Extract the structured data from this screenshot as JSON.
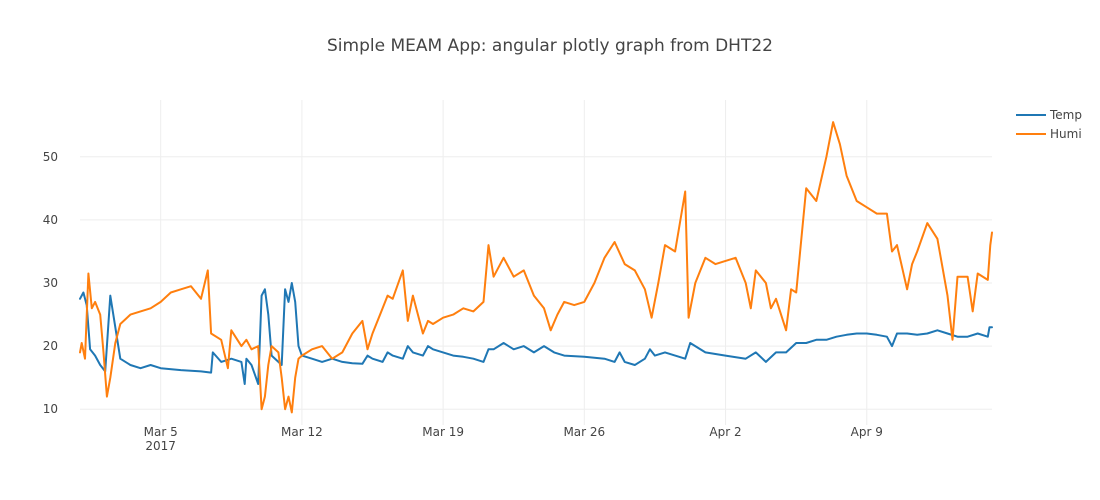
{
  "chart_data": {
    "type": "line",
    "title": "Simple MEAM App: angular plotly graph from DHT22",
    "xlabel": "",
    "ylabel": "",
    "x_range": [
      "2017-03-01T00:00",
      "2017-04-15T05:00"
    ],
    "ylim": [
      7.5,
      59
    ],
    "grid": true,
    "legend_position": "top-right",
    "x_ticks": [
      {
        "date": "2017-03-05",
        "label": "Mar 5",
        "sublabel": "2017"
      },
      {
        "date": "2017-03-12",
        "label": "Mar 12"
      },
      {
        "date": "2017-03-19",
        "label": "Mar 19"
      },
      {
        "date": "2017-03-26",
        "label": "Mar 26"
      },
      {
        "date": "2017-04-02",
        "label": "Apr 2"
      },
      {
        "date": "2017-04-09",
        "label": "Apr 9"
      }
    ],
    "y_ticks": [
      10,
      20,
      30,
      40,
      50
    ],
    "series": [
      {
        "name": "Temp",
        "color": "#1f77b4",
        "points": [
          [
            "2017-03-01T00:00",
            27.5
          ],
          [
            "2017-03-01T04:00",
            28.5
          ],
          [
            "2017-03-01T08:00",
            26.5
          ],
          [
            "2017-03-01T12:00",
            19.5
          ],
          [
            "2017-03-01T18:00",
            18.5
          ],
          [
            "2017-03-02T00:00",
            17.0
          ],
          [
            "2017-03-02T06:00",
            16.0
          ],
          [
            "2017-03-02T12:00",
            28.0
          ],
          [
            "2017-03-02T18:00",
            23.0
          ],
          [
            "2017-03-03T00:00",
            18.0
          ],
          [
            "2017-03-03T12:00",
            17.0
          ],
          [
            "2017-03-04T00:00",
            16.5
          ],
          [
            "2017-03-04T12:00",
            17.0
          ],
          [
            "2017-03-05T00:00",
            16.5
          ],
          [
            "2017-03-06T00:00",
            16.2
          ],
          [
            "2017-03-07T00:00",
            16.0
          ],
          [
            "2017-03-07T12:00",
            15.8
          ],
          [
            "2017-03-07T14:00",
            19.0
          ],
          [
            "2017-03-08T00:00",
            17.5
          ],
          [
            "2017-03-08T12:00",
            18.0
          ],
          [
            "2017-03-09T00:00",
            17.5
          ],
          [
            "2017-03-09T04:00",
            14.0
          ],
          [
            "2017-03-09T06:00",
            18.0
          ],
          [
            "2017-03-09T12:00",
            17.0
          ],
          [
            "2017-03-09T20:00",
            14.0
          ],
          [
            "2017-03-10T00:00",
            28.0
          ],
          [
            "2017-03-10T04:00",
            29.0
          ],
          [
            "2017-03-10T08:00",
            25.0
          ],
          [
            "2017-03-10T12:00",
            18.5
          ],
          [
            "2017-03-10T20:00",
            17.5
          ],
          [
            "2017-03-11T00:00",
            17.0
          ],
          [
            "2017-03-11T04:00",
            29.0
          ],
          [
            "2017-03-11T08:00",
            27.0
          ],
          [
            "2017-03-11T12:00",
            30.0
          ],
          [
            "2017-03-11T16:00",
            27.0
          ],
          [
            "2017-03-11T20:00",
            20.0
          ],
          [
            "2017-03-12T00:00",
            18.5
          ],
          [
            "2017-03-12T12:00",
            18.0
          ],
          [
            "2017-03-13T00:00",
            17.5
          ],
          [
            "2017-03-13T12:00",
            18.0
          ],
          [
            "2017-03-14T00:00",
            17.5
          ],
          [
            "2017-03-14T12:00",
            17.3
          ],
          [
            "2017-03-15T00:00",
            17.2
          ],
          [
            "2017-03-15T06:00",
            18.5
          ],
          [
            "2017-03-15T12:00",
            18.0
          ],
          [
            "2017-03-16T00:00",
            17.5
          ],
          [
            "2017-03-16T06:00",
            19.0
          ],
          [
            "2017-03-16T12:00",
            18.5
          ],
          [
            "2017-03-17T00:00",
            18.0
          ],
          [
            "2017-03-17T06:00",
            20.0
          ],
          [
            "2017-03-17T12:00",
            19.0
          ],
          [
            "2017-03-18T00:00",
            18.5
          ],
          [
            "2017-03-18T06:00",
            20.0
          ],
          [
            "2017-03-18T12:00",
            19.5
          ],
          [
            "2017-03-19T00:00",
            19.0
          ],
          [
            "2017-03-19T12:00",
            18.5
          ],
          [
            "2017-03-20T00:00",
            18.3
          ],
          [
            "2017-03-20T12:00",
            18.0
          ],
          [
            "2017-03-21T00:00",
            17.5
          ],
          [
            "2017-03-21T06:00",
            19.5
          ],
          [
            "2017-03-21T12:00",
            19.5
          ],
          [
            "2017-03-22T00:00",
            20.5
          ],
          [
            "2017-03-22T12:00",
            19.5
          ],
          [
            "2017-03-23T00:00",
            20.0
          ],
          [
            "2017-03-23T12:00",
            19.0
          ],
          [
            "2017-03-24T00:00",
            20.0
          ],
          [
            "2017-03-24T12:00",
            19.0
          ],
          [
            "2017-03-25T00:00",
            18.5
          ],
          [
            "2017-03-26T00:00",
            18.3
          ],
          [
            "2017-03-27T00:00",
            18.0
          ],
          [
            "2017-03-27T12:00",
            17.5
          ],
          [
            "2017-03-27T18:00",
            19.0
          ],
          [
            "2017-03-28T00:00",
            17.5
          ],
          [
            "2017-03-28T12:00",
            17.0
          ],
          [
            "2017-03-29T00:00",
            18.0
          ],
          [
            "2017-03-29T06:00",
            19.5
          ],
          [
            "2017-03-29T12:00",
            18.5
          ],
          [
            "2017-03-30T00:00",
            19.0
          ],
          [
            "2017-03-30T12:00",
            18.5
          ],
          [
            "2017-03-31T00:00",
            18.0
          ],
          [
            "2017-03-31T06:00",
            20.5
          ],
          [
            "2017-04-01T00:00",
            19.0
          ],
          [
            "2017-04-02T00:00",
            18.5
          ],
          [
            "2017-04-03T00:00",
            18.0
          ],
          [
            "2017-04-03T12:00",
            19.0
          ],
          [
            "2017-04-04T00:00",
            17.5
          ],
          [
            "2017-04-04T12:00",
            19.0
          ],
          [
            "2017-04-05T00:00",
            19.0
          ],
          [
            "2017-04-05T12:00",
            20.5
          ],
          [
            "2017-04-06T00:00",
            20.5
          ],
          [
            "2017-04-06T12:00",
            21.0
          ],
          [
            "2017-04-07T00:00",
            21.0
          ],
          [
            "2017-04-07T12:00",
            21.5
          ],
          [
            "2017-04-08T00:00",
            21.8
          ],
          [
            "2017-04-08T12:00",
            22.0
          ],
          [
            "2017-04-09T00:00",
            22.0
          ],
          [
            "2017-04-09T12:00",
            21.8
          ],
          [
            "2017-04-10T00:00",
            21.5
          ],
          [
            "2017-04-10T06:00",
            20.0
          ],
          [
            "2017-04-10T12:00",
            22.0
          ],
          [
            "2017-04-11T00:00",
            22.0
          ],
          [
            "2017-04-11T12:00",
            21.8
          ],
          [
            "2017-04-12T00:00",
            22.0
          ],
          [
            "2017-04-12T12:00",
            22.5
          ],
          [
            "2017-04-13T00:00",
            22.0
          ],
          [
            "2017-04-13T12:00",
            21.5
          ],
          [
            "2017-04-14T00:00",
            21.5
          ],
          [
            "2017-04-14T12:00",
            22.0
          ],
          [
            "2017-04-15T00:00",
            21.5
          ],
          [
            "2017-04-15T02:00",
            23.0
          ],
          [
            "2017-04-15T05:00",
            23.0
          ]
        ]
      },
      {
        "name": "Humi",
        "color": "#ff7f0e",
        "points": [
          [
            "2017-03-01T00:00",
            19.0
          ],
          [
            "2017-03-01T02:00",
            20.5
          ],
          [
            "2017-03-01T06:00",
            18.0
          ],
          [
            "2017-03-01T10:00",
            31.5
          ],
          [
            "2017-03-01T14:00",
            26.0
          ],
          [
            "2017-03-01T18:00",
            27.0
          ],
          [
            "2017-03-02T00:00",
            25.0
          ],
          [
            "2017-03-02T04:00",
            19.0
          ],
          [
            "2017-03-02T08:00",
            12.0
          ],
          [
            "2017-03-02T12:00",
            15.0
          ],
          [
            "2017-03-02T18:00",
            20.5
          ],
          [
            "2017-03-03T00:00",
            23.5
          ],
          [
            "2017-03-03T12:00",
            25.0
          ],
          [
            "2017-03-04T00:00",
            25.5
          ],
          [
            "2017-03-04T12:00",
            26.0
          ],
          [
            "2017-03-05T00:00",
            27.0
          ],
          [
            "2017-03-05T12:00",
            28.5
          ],
          [
            "2017-03-06T00:00",
            29.0
          ],
          [
            "2017-03-06T12:00",
            29.5
          ],
          [
            "2017-03-07T00:00",
            27.5
          ],
          [
            "2017-03-07T08:00",
            32.0
          ],
          [
            "2017-03-07T12:00",
            22.0
          ],
          [
            "2017-03-08T00:00",
            21.0
          ],
          [
            "2017-03-08T08:00",
            16.5
          ],
          [
            "2017-03-08T12:00",
            22.5
          ],
          [
            "2017-03-09T00:00",
            20.0
          ],
          [
            "2017-03-09T06:00",
            21.0
          ],
          [
            "2017-03-09T12:00",
            19.5
          ],
          [
            "2017-03-09T20:00",
            20.0
          ],
          [
            "2017-03-10T00:00",
            10.0
          ],
          [
            "2017-03-10T04:00",
            12.0
          ],
          [
            "2017-03-10T08:00",
            17.0
          ],
          [
            "2017-03-10T12:00",
            20.0
          ],
          [
            "2017-03-10T20:00",
            19.0
          ],
          [
            "2017-03-11T00:00",
            15.0
          ],
          [
            "2017-03-11T04:00",
            10.0
          ],
          [
            "2017-03-11T08:00",
            12.0
          ],
          [
            "2017-03-11T12:00",
            9.5
          ],
          [
            "2017-03-11T16:00",
            15.0
          ],
          [
            "2017-03-11T20:00",
            18.0
          ],
          [
            "2017-03-12T00:00",
            18.5
          ],
          [
            "2017-03-12T12:00",
            19.5
          ],
          [
            "2017-03-13T00:00",
            20.0
          ],
          [
            "2017-03-13T12:00",
            18.0
          ],
          [
            "2017-03-14T00:00",
            19.0
          ],
          [
            "2017-03-14T12:00",
            22.0
          ],
          [
            "2017-03-15T00:00",
            24.0
          ],
          [
            "2017-03-15T06:00",
            19.5
          ],
          [
            "2017-03-15T12:00",
            22.0
          ],
          [
            "2017-03-16T00:00",
            26.0
          ],
          [
            "2017-03-16T06:00",
            28.0
          ],
          [
            "2017-03-16T12:00",
            27.5
          ],
          [
            "2017-03-17T00:00",
            32.0
          ],
          [
            "2017-03-17T06:00",
            24.0
          ],
          [
            "2017-03-17T12:00",
            28.0
          ],
          [
            "2017-03-18T00:00",
            22.0
          ],
          [
            "2017-03-18T06:00",
            24.0
          ],
          [
            "2017-03-18T12:00",
            23.5
          ],
          [
            "2017-03-19T00:00",
            24.5
          ],
          [
            "2017-03-19T12:00",
            25.0
          ],
          [
            "2017-03-20T00:00",
            26.0
          ],
          [
            "2017-03-20T12:00",
            25.5
          ],
          [
            "2017-03-21T00:00",
            27.0
          ],
          [
            "2017-03-21T06:00",
            36.0
          ],
          [
            "2017-03-21T12:00",
            31.0
          ],
          [
            "2017-03-22T00:00",
            34.0
          ],
          [
            "2017-03-22T12:00",
            31.0
          ],
          [
            "2017-03-23T00:00",
            32.0
          ],
          [
            "2017-03-23T12:00",
            28.0
          ],
          [
            "2017-03-24T00:00",
            26.0
          ],
          [
            "2017-03-24T08:00",
            22.5
          ],
          [
            "2017-03-24T16:00",
            25.0
          ],
          [
            "2017-03-25T00:00",
            27.0
          ],
          [
            "2017-03-25T12:00",
            26.5
          ],
          [
            "2017-03-26T00:00",
            27.0
          ],
          [
            "2017-03-26T12:00",
            30.0
          ],
          [
            "2017-03-27T00:00",
            34.0
          ],
          [
            "2017-03-27T12:00",
            36.5
          ],
          [
            "2017-03-28T00:00",
            33.0
          ],
          [
            "2017-03-28T12:00",
            32.0
          ],
          [
            "2017-03-29T00:00",
            29.0
          ],
          [
            "2017-03-29T08:00",
            24.5
          ],
          [
            "2017-03-29T16:00",
            30.0
          ],
          [
            "2017-03-30T00:00",
            36.0
          ],
          [
            "2017-03-30T12:00",
            35.0
          ],
          [
            "2017-03-31T00:00",
            44.5
          ],
          [
            "2017-03-31T04:00",
            24.5
          ],
          [
            "2017-03-31T12:00",
            30.0
          ],
          [
            "2017-04-01T00:00",
            34.0
          ],
          [
            "2017-04-01T12:00",
            33.0
          ],
          [
            "2017-04-02T00:00",
            33.5
          ],
          [
            "2017-04-02T12:00",
            34.0
          ],
          [
            "2017-04-03T00:00",
            30.0
          ],
          [
            "2017-04-03T06:00",
            26.0
          ],
          [
            "2017-04-03T12:00",
            32.0
          ],
          [
            "2017-04-04T00:00",
            30.0
          ],
          [
            "2017-04-04T06:00",
            26.0
          ],
          [
            "2017-04-04T12:00",
            27.5
          ],
          [
            "2017-04-05T00:00",
            22.5
          ],
          [
            "2017-04-05T06:00",
            29.0
          ],
          [
            "2017-04-05T12:00",
            28.5
          ],
          [
            "2017-04-06T00:00",
            45.0
          ],
          [
            "2017-04-06T12:00",
            43.0
          ],
          [
            "2017-04-07T00:00",
            50.0
          ],
          [
            "2017-04-07T08:00",
            55.5
          ],
          [
            "2017-04-07T16:00",
            52.0
          ],
          [
            "2017-04-08T00:00",
            47.0
          ],
          [
            "2017-04-08T12:00",
            43.0
          ],
          [
            "2017-04-09T00:00",
            42.0
          ],
          [
            "2017-04-09T12:00",
            41.0
          ],
          [
            "2017-04-10T00:00",
            41.0
          ],
          [
            "2017-04-10T06:00",
            35.0
          ],
          [
            "2017-04-10T12:00",
            36.0
          ],
          [
            "2017-04-11T00:00",
            29.0
          ],
          [
            "2017-04-11T06:00",
            33.0
          ],
          [
            "2017-04-11T12:00",
            35.0
          ],
          [
            "2017-04-12T00:00",
            39.5
          ],
          [
            "2017-04-12T12:00",
            37.0
          ],
          [
            "2017-04-13T00:00",
            28.0
          ],
          [
            "2017-04-13T06:00",
            21.0
          ],
          [
            "2017-04-13T12:00",
            31.0
          ],
          [
            "2017-04-14T00:00",
            31.0
          ],
          [
            "2017-04-14T06:00",
            25.5
          ],
          [
            "2017-04-14T12:00",
            31.5
          ],
          [
            "2017-04-15T00:00",
            30.5
          ],
          [
            "2017-04-15T03:00",
            36.0
          ],
          [
            "2017-04-15T05:00",
            38.0
          ]
        ]
      }
    ]
  }
}
